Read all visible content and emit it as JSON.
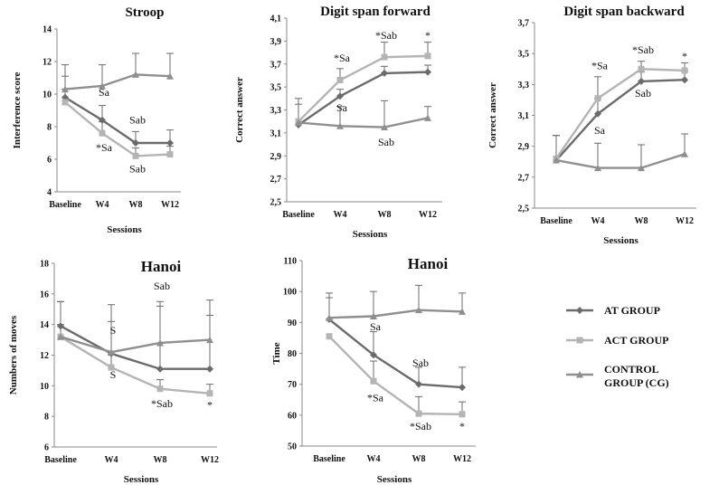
{
  "colors": {
    "at_group": "#6b6b6b",
    "act_group": "#b4b4b4",
    "control_group": "#8f8f8f",
    "axis": "#8a8a8a",
    "error_bar": "#6b6b6b"
  },
  "legend": {
    "items": [
      {
        "name": "AT GROUP",
        "marker": "diamond",
        "color_key": "at_group"
      },
      {
        "name": "ACT GROUP",
        "marker": "square",
        "color_key": "act_group"
      },
      {
        "name": "CONTROL GROUP (CG)",
        "lines": [
          "CONTROL",
          "GROUP (CG)"
        ],
        "marker": "triangle",
        "color_key": "control_group"
      }
    ]
  },
  "chart_data": [
    {
      "id": "stroop",
      "type": "line",
      "title": "Stroop",
      "xlabel": "Sessions",
      "ylabel": "Interference score",
      "categories": [
        "Baseline",
        "W4",
        "W8",
        "W12"
      ],
      "ylim": [
        4,
        14
      ],
      "yticks": [
        "4",
        "6",
        "8",
        "10",
        "12",
        "14"
      ],
      "ytick_values": [
        4,
        6,
        8,
        10,
        12,
        14
      ],
      "series": [
        {
          "name": "AT GROUP",
          "values": [
            9.8,
            8.4,
            7.0,
            7.0
          ],
          "errors": [
            1.3,
            0.9,
            0.7,
            0.8
          ]
        },
        {
          "name": "ACT GROUP",
          "values": [
            9.5,
            7.6,
            6.2,
            6.3
          ],
          "errors": [
            0.8,
            0.7,
            0.5,
            0.5
          ]
        },
        {
          "name": "CONTROL GROUP (CG)",
          "values": [
            10.3,
            10.5,
            11.2,
            11.1
          ],
          "errors": [
            1.5,
            1.3,
            1.3,
            1.4
          ]
        }
      ],
      "annotations": [
        {
          "text": "Sa",
          "x": "W4",
          "y": 9.9
        },
        {
          "text": "*Sa",
          "x": "W4",
          "y": 6.5
        },
        {
          "text": "Sab",
          "x": "W8",
          "y": 8.2
        },
        {
          "text": "Sab",
          "x": "W8",
          "y": 5.2
        }
      ]
    },
    {
      "id": "digit-forward",
      "type": "line",
      "title": "Digit span forward",
      "xlabel": "Sessions",
      "ylabel": "Correct answer",
      "categories": [
        "Baseline",
        "W4",
        "W8",
        "W12"
      ],
      "ylim": [
        2.5,
        4.1
      ],
      "yticks": [
        "2,5",
        "2,7",
        "2,9",
        "3,1",
        "3,3",
        "3,5",
        "3,7",
        "3,9",
        "4,1"
      ],
      "ytick_values": [
        2.5,
        2.7,
        2.9,
        3.1,
        3.3,
        3.5,
        3.7,
        3.9,
        4.1
      ],
      "series": [
        {
          "name": "AT GROUP",
          "values": [
            3.17,
            3.42,
            3.62,
            3.63
          ],
          "errors": [
            0.0,
            0.06,
            0.06,
            0.06
          ]
        },
        {
          "name": "ACT GROUP",
          "values": [
            3.2,
            3.56,
            3.76,
            3.77
          ],
          "errors": [
            0.2,
            0.1,
            0.13,
            0.12
          ]
        },
        {
          "name": "CONTROL GROUP (CG)",
          "values": [
            3.19,
            3.16,
            3.15,
            3.23
          ],
          "errors": [
            0.16,
            0.17,
            0.23,
            0.1
          ]
        }
      ],
      "annotations": [
        {
          "text": "*Sa",
          "x": "W4",
          "y": 3.72
        },
        {
          "text": "Sa",
          "x": "W4",
          "y": 3.29
        },
        {
          "text": "*Sab",
          "x": "W8",
          "y": 3.92
        },
        {
          "text": "Sab",
          "x": "W8",
          "y": 2.99
        },
        {
          "text": "*",
          "x": "W12",
          "y": 3.92
        }
      ]
    },
    {
      "id": "digit-backward",
      "type": "line",
      "title": "Digit span backward",
      "xlabel": "Sessions",
      "ylabel": "Correct answer",
      "categories": [
        "Baseline",
        "W4",
        "W8",
        "W12"
      ],
      "ylim": [
        2.5,
        3.7
      ],
      "yticks": [
        "2,5",
        "2,7",
        "2,9",
        "3,1",
        "3,3",
        "3,5",
        "3,7"
      ],
      "ytick_values": [
        2.5,
        2.7,
        2.9,
        3.1,
        3.3,
        3.5,
        3.7
      ],
      "series": [
        {
          "name": "AT GROUP",
          "values": [
            2.81,
            3.11,
            3.32,
            3.33
          ],
          "errors": [
            0.0,
            0.1,
            0.06,
            0.06
          ]
        },
        {
          "name": "ACT GROUP",
          "values": [
            2.82,
            3.21,
            3.4,
            3.39
          ],
          "errors": [
            0.15,
            0.14,
            0.05,
            0.05
          ]
        },
        {
          "name": "CONTROL GROUP (CG)",
          "values": [
            2.81,
            2.76,
            2.76,
            2.85
          ],
          "errors": [
            0.16,
            0.16,
            0.15,
            0.13
          ]
        }
      ],
      "annotations": [
        {
          "text": "*Sa",
          "x": "W4",
          "y": 3.4
        },
        {
          "text": "Sa",
          "x": "W4",
          "y": 2.98
        },
        {
          "text": "*Sab",
          "x": "W8",
          "y": 3.5
        },
        {
          "text": "Sab",
          "x": "W8",
          "y": 3.22
        },
        {
          "text": "*",
          "x": "W12",
          "y": 3.46
        }
      ]
    },
    {
      "id": "hanoi-moves",
      "type": "line",
      "title": "Hanoi",
      "xlabel": "Sessions",
      "ylabel": "Numbers of moves",
      "categories": [
        "Baseline",
        "W4",
        "W8",
        "W12"
      ],
      "ylim": [
        6,
        18
      ],
      "yticks": [
        "6",
        "8",
        "10",
        "12",
        "14",
        "16",
        "18"
      ],
      "ytick_values": [
        6,
        8,
        10,
        12,
        14,
        16,
        18
      ],
      "series": [
        {
          "name": "AT GROUP",
          "values": [
            13.9,
            12.1,
            11.1,
            11.1
          ],
          "errors": [
            1.6,
            3.2,
            4.1,
            3.5
          ]
        },
        {
          "name": "ACT GROUP",
          "values": [
            13.2,
            11.2,
            9.8,
            9.5
          ],
          "errors": [
            0.8,
            0.8,
            0.6,
            0.6
          ]
        },
        {
          "name": "CONTROL GROUP (CG)",
          "values": [
            13.2,
            12.2,
            12.8,
            13.0
          ],
          "errors": [
            2.3,
            2.0,
            2.7,
            2.6
          ]
        }
      ],
      "annotations": [
        {
          "text": "S",
          "x": "W4",
          "y": 13.4
        },
        {
          "text": "S",
          "x": "W4",
          "y": 10.5
        },
        {
          "text": "Sab",
          "x": "W8",
          "y": 16.3
        },
        {
          "text": "*Sab",
          "x": "W8",
          "y": 8.6
        },
        {
          "text": "*",
          "x": "W12",
          "y": 8.5
        }
      ]
    },
    {
      "id": "hanoi-time",
      "type": "line",
      "title": "Hanoi",
      "xlabel": "Sessions",
      "ylabel": "Time",
      "categories": [
        "Baseline",
        "W4",
        "W8",
        "W12"
      ],
      "ylim": [
        50,
        110
      ],
      "yticks": [
        "50",
        "60",
        "70",
        "80",
        "90",
        "100",
        "110"
      ],
      "ytick_values": [
        50,
        60,
        70,
        80,
        90,
        100,
        110
      ],
      "series": [
        {
          "name": "AT GROUP",
          "values": [
            91,
            79.5,
            70,
            69
          ],
          "errors": [
            8.5,
            7.5,
            5.5,
            6.5
          ]
        },
        {
          "name": "ACT GROUP",
          "values": [
            85.5,
            71,
            60.5,
            60.3
          ],
          "errors": [
            0.0,
            6.5,
            5.5,
            4.0
          ]
        },
        {
          "name": "CONTROL GROUP (CG)",
          "values": [
            91.5,
            92,
            94,
            93.5
          ],
          "errors": [
            6.5,
            8.0,
            8.0,
            6.0
          ]
        }
      ],
      "annotations": [
        {
          "text": "Sa",
          "x": "W4",
          "y": 87.5
        },
        {
          "text": "Sab",
          "x": "W8",
          "y": 75.8
        },
        {
          "text": "*Sa",
          "x": "W4",
          "y": 64.5
        },
        {
          "text": "*Sab",
          "x": "W8",
          "y": 55.2
        },
        {
          "text": "*",
          "x": "W12",
          "y": 55.2
        }
      ]
    }
  ]
}
